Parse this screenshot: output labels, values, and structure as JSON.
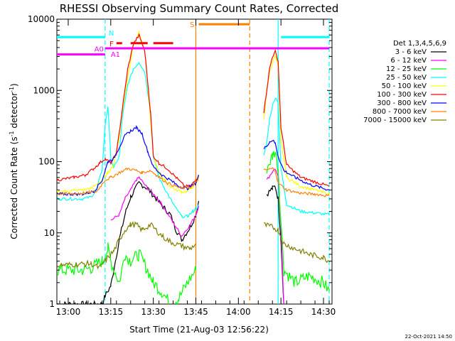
{
  "chart_data": {
    "type": "line",
    "title": "RHESSI Observing Summary Count Rates, Corrected",
    "xlabel": "Start Time (21-Aug-03 12:56:22)",
    "ylabel": "Corrected Count Rate (s",
    "ylabel_sup": "-1",
    "ylabel_tail": " detector",
    "ylabel_sup2": "-1",
    "ylabel_end": ")",
    "y_scale": "log",
    "ylim": [
      1,
      10000
    ],
    "xlim": [
      "12:56:22",
      "14:33:00"
    ],
    "x_ticks": [
      "13:00",
      "13:15",
      "13:30",
      "13:45",
      "14:00",
      "14:15",
      "14:30"
    ],
    "y_ticks": [
      "1",
      "10",
      "100",
      "1000",
      "10000"
    ],
    "legend_title": "Det 1,3,4,5,6,9",
    "legend_position": "top-right",
    "data_gap": [
      "13:46",
      "14:06"
    ],
    "series": [
      {
        "name": "3 - 6 keV",
        "color": "#000000",
        "points": [
          [
            "12:56",
            1
          ],
          [
            "13:12",
            1
          ],
          [
            "13:13",
            1.3
          ],
          [
            "13:15",
            1.8
          ],
          [
            "13:18",
            8
          ],
          [
            "13:20",
            18
          ],
          [
            "13:22",
            32
          ],
          [
            "13:25",
            50
          ],
          [
            "13:28",
            42
          ],
          [
            "13:31",
            30
          ],
          [
            "13:34",
            22
          ],
          [
            "13:36",
            18
          ],
          [
            "13:38",
            11
          ],
          [
            "13:40",
            8
          ],
          [
            "13:43",
            12
          ],
          [
            "13:45",
            18
          ],
          [
            "13:46",
            28
          ]
        ],
        "points2": [
          [
            "14:10",
            35
          ],
          [
            "14:12",
            42
          ],
          [
            "14:13",
            45
          ],
          [
            "14:14",
            30
          ],
          [
            "14:15",
            8
          ],
          [
            "14:16",
            1
          ]
        ]
      },
      {
        "name": "6 - 12 keV",
        "color": "#ff00ff",
        "points": [
          [
            "13:15",
            15
          ],
          [
            "13:18",
            18
          ],
          [
            "13:20",
            30
          ],
          [
            "13:22",
            40
          ],
          [
            "13:24",
            55
          ],
          [
            "13:25",
            60
          ],
          [
            "13:28",
            42
          ],
          [
            "13:31",
            32
          ],
          [
            "13:34",
            22
          ],
          [
            "13:37",
            14
          ],
          [
            "13:40",
            9
          ],
          [
            "13:43",
            13
          ],
          [
            "13:45",
            18
          ],
          [
            "13:46",
            24
          ]
        ],
        "points2": [
          [
            "14:10",
            55
          ],
          [
            "14:12",
            72
          ],
          [
            "14:13",
            80
          ],
          [
            "14:14",
            60
          ],
          [
            "14:15",
            12
          ],
          [
            "14:16",
            1
          ]
        ]
      },
      {
        "name": "12 - 25 keV",
        "color": "#00ff00",
        "points": [
          [
            "12:56",
            3
          ],
          [
            "13:05",
            3
          ],
          [
            "13:08",
            3.2
          ],
          [
            "13:12",
            4
          ],
          [
            "13:14",
            6
          ],
          [
            "13:15",
            4
          ],
          [
            "13:18",
            2
          ],
          [
            "13:20",
            5
          ],
          [
            "13:22",
            4
          ],
          [
            "13:25",
            5
          ],
          [
            "13:28",
            3
          ],
          [
            "13:30",
            2
          ],
          [
            "13:33",
            1.5
          ],
          [
            "13:36",
            1
          ],
          [
            "13:39",
            1.2
          ],
          [
            "13:42",
            2
          ],
          [
            "13:45",
            3
          ]
        ],
        "points2": [
          [
            "14:10",
            80
          ],
          [
            "14:12",
            120
          ],
          [
            "14:13",
            140
          ],
          [
            "14:14",
            80
          ],
          [
            "14:16",
            3
          ],
          [
            "14:20",
            2
          ],
          [
            "14:25",
            2.5
          ],
          [
            "14:30",
            2
          ],
          [
            "14:32",
            1.5
          ]
        ]
      },
      {
        "name": "25 - 50 keV",
        "color": "#00ffff",
        "points": [
          [
            "12:56",
            30
          ],
          [
            "13:05",
            30
          ],
          [
            "13:08",
            32
          ],
          [
            "13:10",
            40
          ],
          [
            "13:12",
            80
          ],
          [
            "13:13",
            320
          ],
          [
            "13:14",
            600
          ],
          [
            "13:15",
            120
          ],
          [
            "13:16",
            80
          ],
          [
            "13:18",
            120
          ],
          [
            "13:19",
            400
          ],
          [
            "13:21",
            1200
          ],
          [
            "13:23",
            2000
          ],
          [
            "13:25",
            2500
          ],
          [
            "13:27",
            1800
          ],
          [
            "13:29",
            500
          ],
          [
            "13:30",
            120
          ],
          [
            "13:32",
            60
          ],
          [
            "13:34",
            42
          ],
          [
            "13:36",
            30
          ],
          [
            "13:38",
            22
          ],
          [
            "13:40",
            17
          ],
          [
            "13:42",
            17
          ],
          [
            "13:44",
            20
          ],
          [
            "13:45",
            22
          ],
          [
            "13:46",
            24
          ]
        ],
        "points2": [
          [
            "14:09",
            120
          ],
          [
            "14:10",
            180
          ],
          [
            "14:11",
            400
          ],
          [
            "14:12",
            600
          ],
          [
            "14:13",
            800
          ],
          [
            "14:14",
            700
          ],
          [
            "14:15",
            80
          ],
          [
            "14:17",
            25
          ],
          [
            "14:22",
            20
          ],
          [
            "14:27",
            19
          ],
          [
            "14:32",
            18
          ]
        ]
      },
      {
        "name": "50 - 100 keV",
        "color": "#ffff00",
        "points": [
          [
            "12:56",
            38
          ],
          [
            "13:05",
            40
          ],
          [
            "13:08",
            42
          ],
          [
            "13:12",
            55
          ],
          [
            "13:14",
            70
          ],
          [
            "13:16",
            90
          ],
          [
            "13:18",
            220
          ],
          [
            "13:19",
            500
          ],
          [
            "13:21",
            1500
          ],
          [
            "13:23",
            4500
          ],
          [
            "13:25",
            6500
          ],
          [
            "13:27",
            3500
          ],
          [
            "13:29",
            400
          ],
          [
            "13:30",
            120
          ],
          [
            "13:32",
            70
          ],
          [
            "13:34",
            55
          ],
          [
            "13:36",
            45
          ],
          [
            "13:38",
            40
          ],
          [
            "13:40",
            38
          ],
          [
            "13:42",
            38
          ],
          [
            "13:44",
            45
          ],
          [
            "13:46",
            55
          ]
        ],
        "points2": [
          [
            "14:09",
            400
          ],
          [
            "14:10",
            1000
          ],
          [
            "14:11",
            1800
          ],
          [
            "14:12",
            2500
          ],
          [
            "14:13",
            3000
          ],
          [
            "14:14",
            2200
          ],
          [
            "14:15",
            200
          ],
          [
            "14:17",
            60
          ],
          [
            "14:22",
            45
          ],
          [
            "14:27",
            40
          ],
          [
            "14:32",
            35
          ]
        ]
      },
      {
        "name": "100 - 300 keV",
        "color": "#ff0000",
        "points": [
          [
            "12:56",
            55
          ],
          [
            "13:02",
            60
          ],
          [
            "13:06",
            65
          ],
          [
            "13:09",
            80
          ],
          [
            "13:11",
            95
          ],
          [
            "13:13",
            110
          ],
          [
            "13:15",
            95
          ],
          [
            "13:17",
            130
          ],
          [
            "13:19",
            520
          ],
          [
            "13:21",
            2000
          ],
          [
            "13:23",
            4500
          ],
          [
            "13:25",
            6000
          ],
          [
            "13:27",
            3500
          ],
          [
            "13:29",
            500
          ],
          [
            "13:30",
            120
          ],
          [
            "13:32",
            95
          ],
          [
            "13:35",
            80
          ],
          [
            "13:38",
            60
          ],
          [
            "13:41",
            45
          ],
          [
            "13:43",
            45
          ],
          [
            "13:45",
            55
          ],
          [
            "13:46",
            65
          ]
        ],
        "points2": [
          [
            "14:09",
            500
          ],
          [
            "14:10",
            1000
          ],
          [
            "14:11",
            2000
          ],
          [
            "14:12",
            3000
          ],
          [
            "14:13",
            3500
          ],
          [
            "14:14",
            2600
          ],
          [
            "14:15",
            300
          ],
          [
            "14:17",
            90
          ],
          [
            "14:22",
            60
          ],
          [
            "14:27",
            52
          ],
          [
            "14:32",
            45
          ]
        ]
      },
      {
        "name": "300 - 800 keV",
        "color": "#0000ff",
        "points": [
          [
            "12:56",
            35
          ],
          [
            "13:05",
            35
          ],
          [
            "13:09",
            38
          ],
          [
            "13:12",
            55
          ],
          [
            "13:14",
            100
          ],
          [
            "13:16",
            110
          ],
          [
            "13:18",
            160
          ],
          [
            "13:20",
            230
          ],
          [
            "13:22",
            270
          ],
          [
            "13:24",
            300
          ],
          [
            "13:26",
            250
          ],
          [
            "13:28",
            140
          ],
          [
            "13:30",
            85
          ],
          [
            "13:33",
            65
          ],
          [
            "13:36",
            55
          ],
          [
            "13:39",
            45
          ],
          [
            "13:42",
            42
          ],
          [
            "13:45",
            50
          ],
          [
            "13:46",
            65
          ]
        ],
        "points2": [
          [
            "14:09",
            150
          ],
          [
            "14:11",
            190
          ],
          [
            "14:12",
            200
          ],
          [
            "14:13",
            180
          ],
          [
            "14:14",
            120
          ],
          [
            "14:16",
            75
          ],
          [
            "14:20",
            60
          ],
          [
            "14:25",
            48
          ],
          [
            "14:30",
            42
          ],
          [
            "14:32",
            40
          ]
        ]
      },
      {
        "name": "800 - 7000 keV",
        "color": "#ff8000",
        "points": [
          [
            "12:56",
            35
          ],
          [
            "13:05",
            36
          ],
          [
            "13:10",
            38
          ],
          [
            "13:13",
            55
          ],
          [
            "13:15",
            60
          ],
          [
            "13:18",
            70
          ],
          [
            "13:21",
            80
          ],
          [
            "13:24",
            75
          ],
          [
            "13:26",
            70
          ],
          [
            "13:29",
            75
          ],
          [
            "13:31",
            65
          ],
          [
            "13:35",
            50
          ],
          [
            "13:40",
            42
          ],
          [
            "13:44",
            45
          ],
          [
            "13:46",
            60
          ]
        ],
        "points2": [
          [
            "14:09",
            75
          ],
          [
            "14:12",
            80
          ],
          [
            "14:13",
            75
          ],
          [
            "14:14",
            50
          ],
          [
            "14:17",
            40
          ],
          [
            "14:22",
            36
          ],
          [
            "14:27",
            35
          ],
          [
            "14:32",
            33
          ]
        ]
      },
      {
        "name": "7000 - 15000 keV",
        "color": "#808000",
        "points": [
          [
            "12:56",
            3.5
          ],
          [
            "13:08",
            3.7
          ],
          [
            "13:11",
            3.2
          ],
          [
            "13:14",
            4.5
          ],
          [
            "13:16",
            5.5
          ],
          [
            "13:18",
            8
          ],
          [
            "13:20",
            11
          ],
          [
            "13:22",
            13
          ],
          [
            "13:24",
            13
          ],
          [
            "13:26",
            11
          ],
          [
            "13:29",
            13
          ],
          [
            "13:31",
            11
          ],
          [
            "13:33",
            9
          ],
          [
            "13:36",
            7.5
          ],
          [
            "13:40",
            6.5
          ],
          [
            "13:43",
            6
          ],
          [
            "13:45",
            7
          ]
        ],
        "points2": [
          [
            "14:09",
            13
          ],
          [
            "14:12",
            12
          ],
          [
            "14:14",
            11
          ],
          [
            "14:16",
            7
          ],
          [
            "14:20",
            6
          ],
          [
            "14:25",
            5
          ],
          [
            "14:30",
            4.5
          ],
          [
            "14:32",
            4
          ]
        ]
      }
    ],
    "markers": [
      {
        "label": "N",
        "color": "#00ffff",
        "segments": [
          [
            "12:56",
            "13:13"
          ],
          [
            "14:15",
            "14:32"
          ]
        ],
        "level": 5600
      },
      {
        "label": "A0",
        "color": "#ff00ff",
        "segments": [
          [
            "12:56",
            "13:13"
          ]
        ],
        "level": 3200
      },
      {
        "label": "A1",
        "color": "#ff00ff",
        "segments": [
          [
            "13:13",
            "14:32"
          ]
        ],
        "level": 3900
      },
      {
        "label": "F",
        "color": "#ff0000",
        "segments": [
          [
            "13:17",
            "13:19"
          ],
          [
            "13:22",
            "13:28"
          ],
          [
            "13:30",
            "13:37"
          ]
        ],
        "level": 4600
      },
      {
        "label": "S",
        "color": "#ff8000",
        "segments": [
          [
            "13:46",
            "14:04"
          ]
        ],
        "level": 8500
      }
    ],
    "vlines": [
      {
        "time": "13:13",
        "color": "#00ffff",
        "style": "dashed"
      },
      {
        "time": "13:45",
        "color": "#ff8000",
        "style": "solid"
      },
      {
        "time": "14:04",
        "color": "#ff8000",
        "style": "dashed"
      },
      {
        "time": "14:14",
        "color": "#00ffff",
        "style": "solid"
      },
      {
        "time": "14:32",
        "color": "#00ffff",
        "style": "dashed"
      }
    ]
  },
  "footer": {
    "stamp": "22-Oct-2021 14:50"
  }
}
